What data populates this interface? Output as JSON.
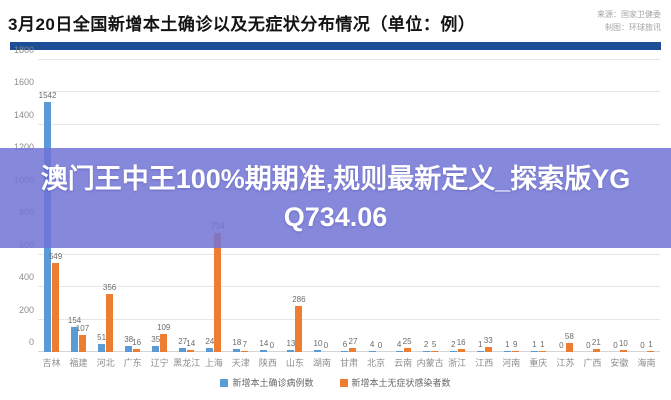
{
  "header": {
    "title": "3月20日全国新增本土确诊以及无症状分布情况（单位：例）",
    "source_line1": "来源：国家卫健委",
    "source_line2": "制图：环球旅讯"
  },
  "overlay": {
    "text": "澳门王中王100%期期准,规则最新定义_探索版YGQ734.06"
  },
  "colors": {
    "confirmed_blue": "#5B9BD5",
    "asymptomatic_orange": "#ED7D31",
    "divider_navy": "#1B4E96",
    "overlay_background": "rgba(113,115,214,0.85)"
  },
  "chart_data": {
    "type": "bar",
    "title": "3月20日全国新增本土确诊以及无症状分布情况（单位：例）",
    "xlabel": "",
    "ylabel": "",
    "ylim": [
      0,
      1800
    ],
    "ytick_interval": 200,
    "grid": true,
    "legend_position": "bottom",
    "categories": [
      "吉林",
      "福建",
      "河北",
      "广东",
      "辽宁",
      "黑龙江",
      "上海",
      "天津",
      "陕西",
      "山东",
      "湖南",
      "甘肃",
      "北京",
      "云南",
      "内蒙古",
      "浙江",
      "江西",
      "河南",
      "重庆",
      "江苏",
      "广西",
      "安徽",
      "海南"
    ],
    "series": [
      {
        "name": "新增本土确诊病例数",
        "color": "#5B9BD5",
        "values": [
          1542,
          154,
          51,
          38,
          35,
          27,
          24,
          18,
          14,
          13,
          10,
          6,
          4,
          4,
          2,
          2,
          1,
          1,
          1,
          0,
          0,
          0,
          0
        ]
      },
      {
        "name": "新增本土无症状感染者数",
        "color": "#ED7D31",
        "values": [
          549,
          107,
          356,
          16,
          109,
          14,
          734,
          7,
          0,
          286,
          0,
          27,
          0,
          25,
          5,
          16,
          33,
          9,
          1,
          58,
          21,
          10,
          1
        ]
      }
    ]
  }
}
